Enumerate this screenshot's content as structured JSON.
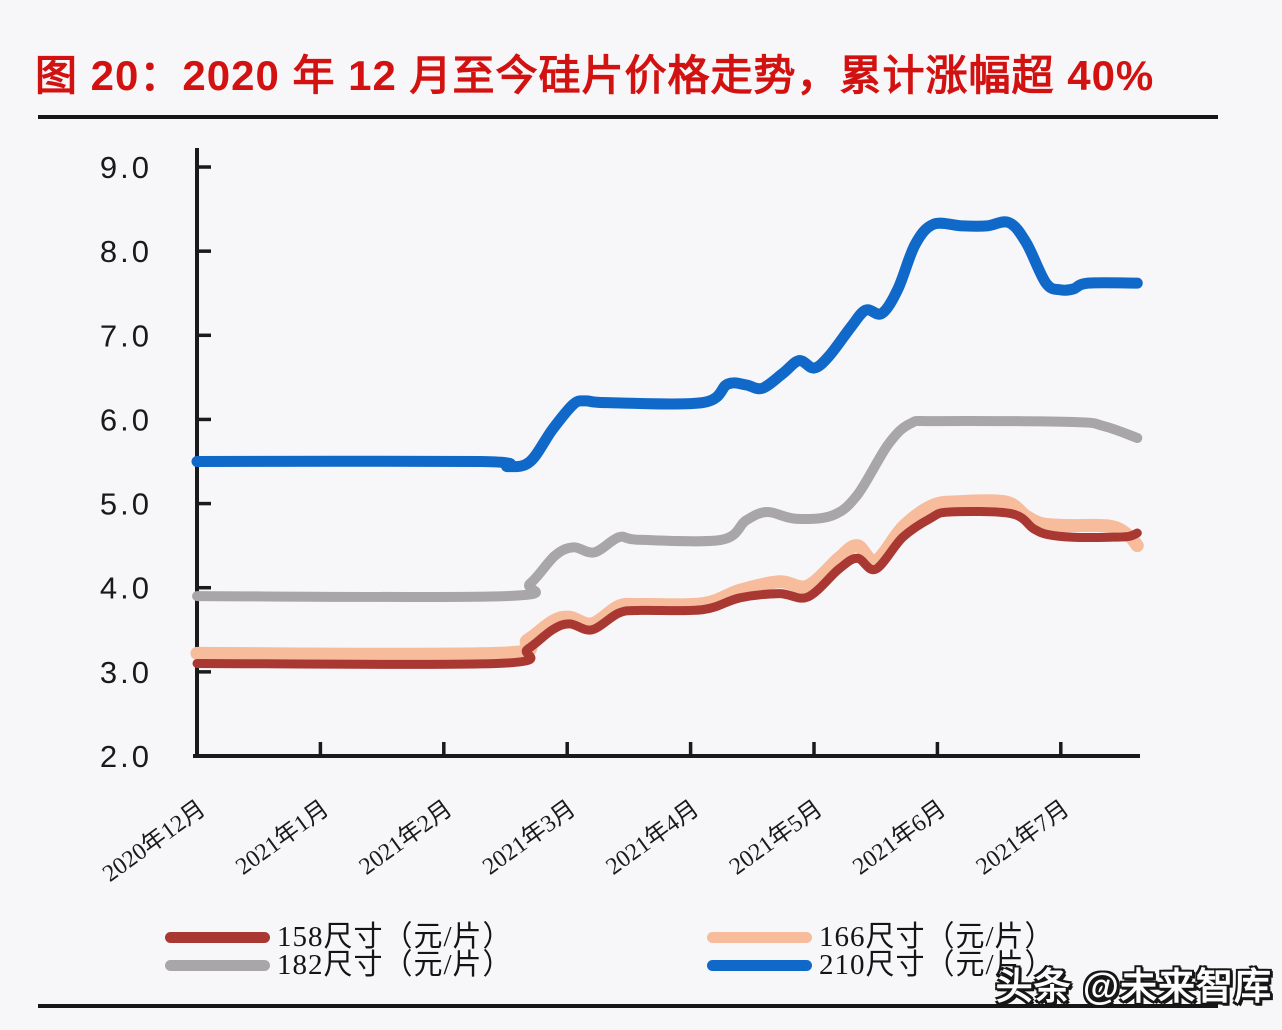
{
  "title": "图 20：2020 年 12 月至今硅片价格走势，累计涨幅超 40%",
  "watermark": "头条 @未来智库",
  "colors": {
    "title_red": "#d21210",
    "axis_black": "#1a1a1a",
    "background": "#f7f6f9",
    "series_158": "#a93833",
    "series_166": "#f6bc9c",
    "series_182": "#a8a6a8",
    "series_210": "#1069c8"
  },
  "chart_data": {
    "type": "line",
    "title": "图 20：2020 年 12 月至今硅片价格走势，累计涨幅超 40%",
    "xlabel": "",
    "ylabel": "",
    "ylim": [
      2.0,
      9.0
    ],
    "x_unit_months_from_dec2020": [
      0,
      7.62
    ],
    "grid": "off",
    "legend_position": "bottom",
    "ytick_labels": [
      "2.0",
      "3.0",
      "4.0",
      "5.0",
      "6.0",
      "7.0",
      "8.0",
      "9.0"
    ],
    "xtick_labels": [
      "2020年12月",
      "2021年1月",
      "2021年2月",
      "2021年3月",
      "2021年4月",
      "2021年5月",
      "2021年6月",
      "2021年7月"
    ],
    "draw_order": [
      1,
      0,
      2,
      3
    ],
    "series": [
      {
        "name": "158尺寸（元/片）",
        "color": "#a93833",
        "width": 9,
        "points": [
          [
            0,
            3.1
          ],
          [
            2.45,
            3.1
          ],
          [
            2.68,
            3.27
          ],
          [
            2.88,
            3.5
          ],
          [
            3.02,
            3.57
          ],
          [
            3.2,
            3.5
          ],
          [
            3.42,
            3.7
          ],
          [
            3.6,
            3.73
          ],
          [
            4.1,
            3.74
          ],
          [
            4.4,
            3.88
          ],
          [
            4.72,
            3.93
          ],
          [
            4.95,
            3.89
          ],
          [
            5.2,
            4.22
          ],
          [
            5.35,
            4.35
          ],
          [
            5.5,
            4.22
          ],
          [
            5.72,
            4.6
          ],
          [
            5.95,
            4.83
          ],
          [
            6.1,
            4.9
          ],
          [
            6.6,
            4.88
          ],
          [
            6.78,
            4.7
          ],
          [
            6.9,
            4.63
          ],
          [
            7.1,
            4.6
          ],
          [
            7.4,
            4.6
          ],
          [
            7.55,
            4.61
          ],
          [
            7.62,
            4.65
          ]
        ]
      },
      {
        "name": "166尺寸（元/片）",
        "color": "#f6bc9c",
        "width": 13,
        "points": [
          [
            0,
            3.22
          ],
          [
            2.45,
            3.22
          ],
          [
            2.68,
            3.38
          ],
          [
            2.88,
            3.6
          ],
          [
            3.02,
            3.65
          ],
          [
            3.2,
            3.57
          ],
          [
            3.42,
            3.78
          ],
          [
            3.6,
            3.8
          ],
          [
            4.1,
            3.81
          ],
          [
            4.4,
            3.97
          ],
          [
            4.72,
            4.07
          ],
          [
            4.95,
            4.02
          ],
          [
            5.2,
            4.35
          ],
          [
            5.35,
            4.5
          ],
          [
            5.5,
            4.32
          ],
          [
            5.72,
            4.72
          ],
          [
            5.95,
            4.97
          ],
          [
            6.15,
            5.02
          ],
          [
            6.55,
            5.02
          ],
          [
            6.72,
            4.85
          ],
          [
            6.85,
            4.76
          ],
          [
            7.05,
            4.74
          ],
          [
            7.4,
            4.73
          ],
          [
            7.55,
            4.62
          ],
          [
            7.62,
            4.5
          ]
        ]
      },
      {
        "name": "182尺寸（元/片）",
        "color": "#a8a6a8",
        "width": 10,
        "points": [
          [
            0,
            3.9
          ],
          [
            2.5,
            3.9
          ],
          [
            2.7,
            4.05
          ],
          [
            2.9,
            4.38
          ],
          [
            3.05,
            4.48
          ],
          [
            3.22,
            4.42
          ],
          [
            3.42,
            4.6
          ],
          [
            3.58,
            4.57
          ],
          [
            4.25,
            4.57
          ],
          [
            4.45,
            4.8
          ],
          [
            4.62,
            4.9
          ],
          [
            4.85,
            4.82
          ],
          [
            5.15,
            4.86
          ],
          [
            5.35,
            5.1
          ],
          [
            5.6,
            5.7
          ],
          [
            5.78,
            5.95
          ],
          [
            6.0,
            5.98
          ],
          [
            7.1,
            5.97
          ],
          [
            7.35,
            5.92
          ],
          [
            7.62,
            5.78
          ]
        ]
      },
      {
        "name": "210尺寸（元/片）",
        "color": "#1069c8",
        "width": 11,
        "points": [
          [
            0,
            5.5
          ],
          [
            2.3,
            5.5
          ],
          [
            2.52,
            5.44
          ],
          [
            2.7,
            5.5
          ],
          [
            2.88,
            5.88
          ],
          [
            3.05,
            6.18
          ],
          [
            3.15,
            6.22
          ],
          [
            3.32,
            6.2
          ],
          [
            4.1,
            6.2
          ],
          [
            4.3,
            6.42
          ],
          [
            4.45,
            6.41
          ],
          [
            4.58,
            6.37
          ],
          [
            4.75,
            6.55
          ],
          [
            4.88,
            6.7
          ],
          [
            5.0,
            6.61
          ],
          [
            5.12,
            6.75
          ],
          [
            5.3,
            7.1
          ],
          [
            5.42,
            7.3
          ],
          [
            5.55,
            7.26
          ],
          [
            5.68,
            7.55
          ],
          [
            5.82,
            8.08
          ],
          [
            5.97,
            8.32
          ],
          [
            6.2,
            8.3
          ],
          [
            6.4,
            8.3
          ],
          [
            6.58,
            8.34
          ],
          [
            6.72,
            8.1
          ],
          [
            6.88,
            7.62
          ],
          [
            7.0,
            7.54
          ],
          [
            7.1,
            7.55
          ],
          [
            7.22,
            7.62
          ],
          [
            7.62,
            7.62
          ]
        ]
      }
    ]
  },
  "legend": {
    "items": [
      "158尺寸（元/片）",
      "166尺寸（元/片）",
      "182尺寸（元/片）",
      "210尺寸（元/片）"
    ]
  }
}
